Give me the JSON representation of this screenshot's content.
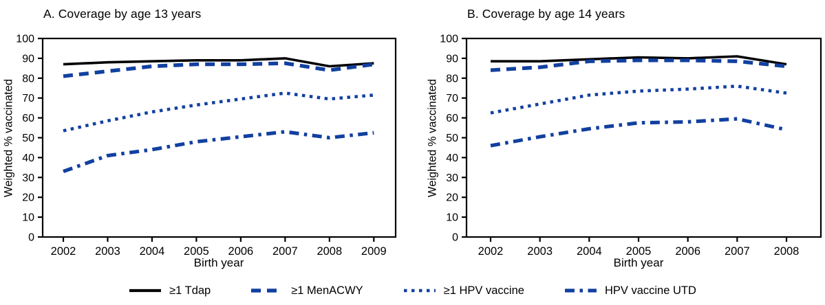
{
  "figure": {
    "background": "#ffffff",
    "text_color": "#000000",
    "accent_blue": "#1240A0"
  },
  "chart_data": [
    {
      "type": "line",
      "title": "A. Coverage by age 13 years",
      "xlabel": "Birth year",
      "ylabel": "Weighted % vaccinated",
      "x": [
        2002,
        2003,
        2004,
        2005,
        2006,
        2007,
        2008,
        2009
      ],
      "ylim": [
        0,
        100
      ],
      "yticks": [
        0,
        10,
        20,
        30,
        40,
        50,
        60,
        70,
        80,
        90,
        100
      ],
      "grid": false,
      "legend_position": "bottom-shared",
      "series": [
        {
          "name": "≥1 Tdap",
          "style": "solid",
          "color": "#000000",
          "values": [
            87,
            88,
            88.5,
            89,
            89,
            90,
            86,
            87.5
          ]
        },
        {
          "name": "≥1 MenACWY",
          "style": "dashed",
          "color": "#1240A0",
          "values": [
            81,
            83.5,
            86,
            87,
            87,
            87.5,
            84,
            87
          ]
        },
        {
          "name": "≥1 HPV vaccine",
          "style": "dotted",
          "color": "#1240A0",
          "values": [
            53.5,
            58.5,
            63,
            66.5,
            69.5,
            72.5,
            69.5,
            71.5
          ]
        },
        {
          "name": "HPV vaccine UTD",
          "style": "dashdot",
          "color": "#1240A0",
          "values": [
            33,
            41,
            44,
            48,
            50.5,
            53,
            50,
            52.5
          ]
        }
      ]
    },
    {
      "type": "line",
      "title": "B. Coverage by age 14 years",
      "xlabel": "Birth year",
      "ylabel": "Weighted % vaccinated",
      "x": [
        2002,
        2003,
        2004,
        2005,
        2006,
        2007,
        2008
      ],
      "ylim": [
        0,
        100
      ],
      "yticks": [
        0,
        10,
        20,
        30,
        40,
        50,
        60,
        70,
        80,
        90,
        100
      ],
      "grid": false,
      "legend_position": "bottom-shared",
      "series": [
        {
          "name": "≥1 Tdap",
          "style": "solid",
          "color": "#000000",
          "values": [
            88.5,
            88.5,
            89.5,
            90.5,
            90,
            91,
            87
          ]
        },
        {
          "name": "≥1 MenACWY",
          "style": "dashed",
          "color": "#1240A0",
          "values": [
            84,
            85.5,
            88.5,
            89,
            89,
            88.5,
            86
          ]
        },
        {
          "name": "≥1 HPV vaccine",
          "style": "dotted",
          "color": "#1240A0",
          "values": [
            62.5,
            67,
            71.5,
            73.5,
            74.5,
            76,
            72.5
          ]
        },
        {
          "name": "HPV vaccine UTD",
          "style": "dashdot",
          "color": "#1240A0",
          "values": [
            46,
            50.5,
            54.5,
            57.5,
            58,
            59.5,
            54
          ]
        }
      ]
    }
  ]
}
